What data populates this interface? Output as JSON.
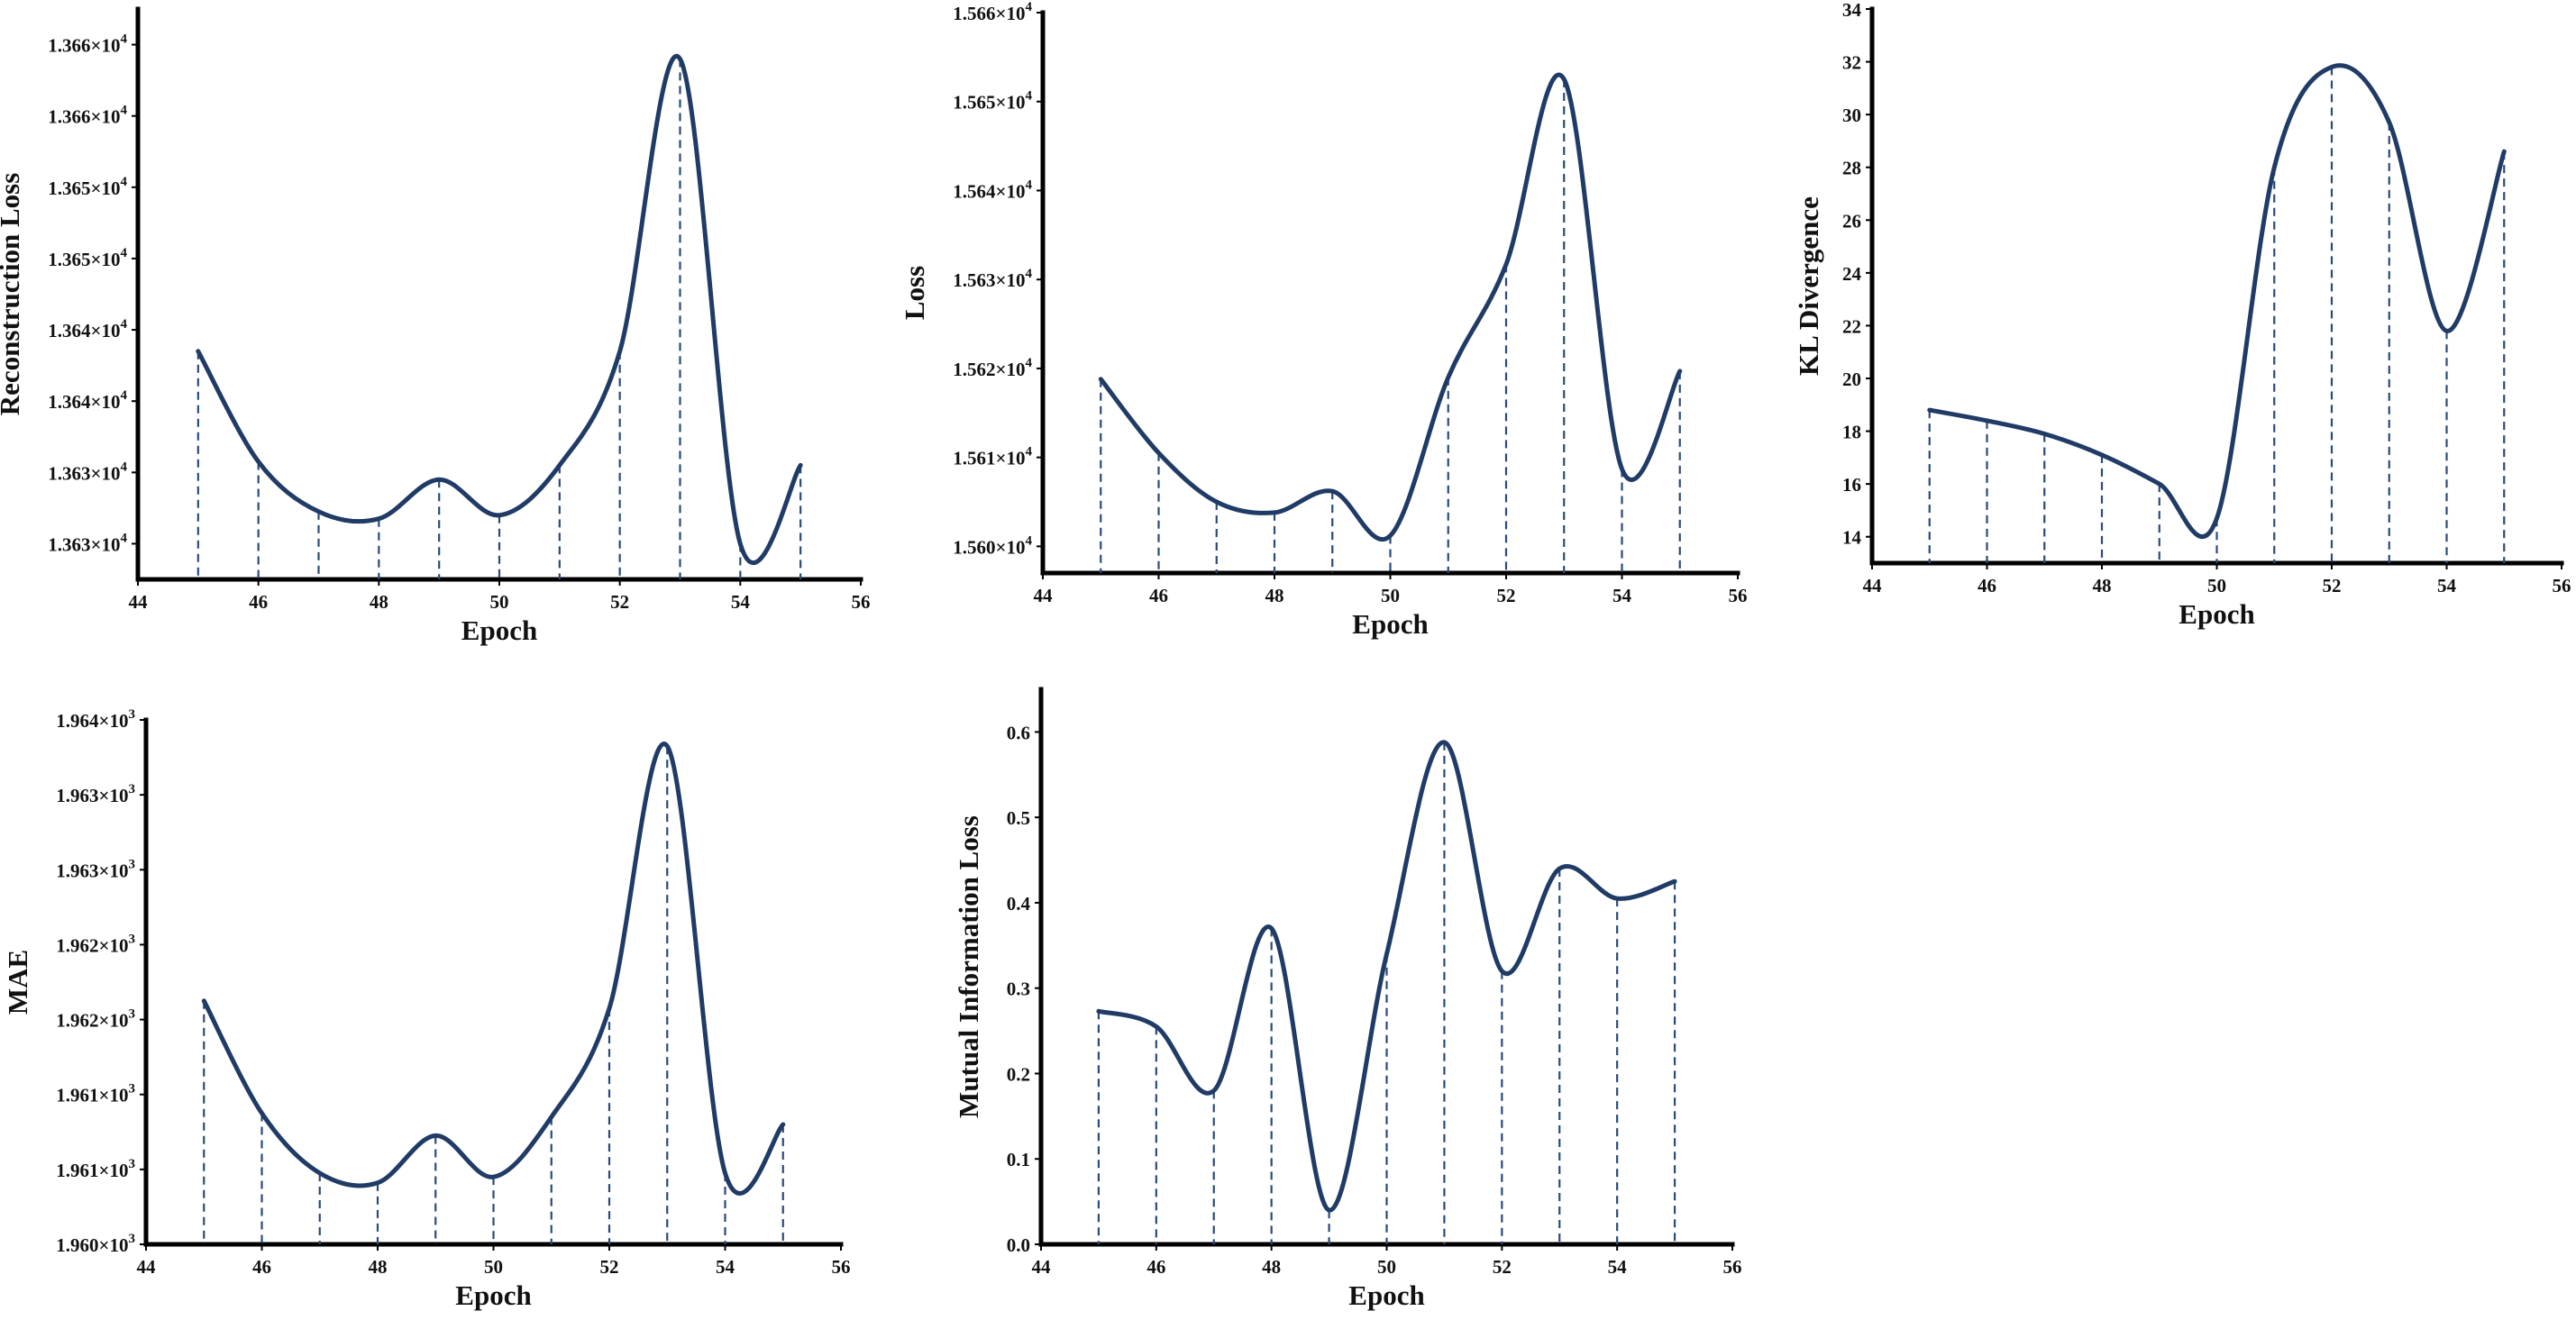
{
  "colors": {
    "line": "#1f3b66",
    "dropline": "#2b4a7a",
    "axis": "#000000"
  },
  "chart_data": [
    {
      "id": "reconstruction",
      "type": "line",
      "xlabel": "Epoch",
      "ylabel": "Reconstruction Loss",
      "xlim": [
        44,
        56
      ],
      "ylim": [
        0,
        8
      ],
      "xticks": [
        44,
        46,
        48,
        50,
        52,
        54,
        56
      ],
      "yticks": [
        {
          "v": 0.5,
          "m": "1.363×10",
          "e": "4"
        },
        {
          "v": 1.5,
          "m": "1.363×10",
          "e": "4"
        },
        {
          "v": 2.5,
          "m": "1.364×10",
          "e": "4"
        },
        {
          "v": 3.5,
          "m": "1.364×10",
          "e": "4"
        },
        {
          "v": 4.5,
          "m": "1.365×10",
          "e": "4"
        },
        {
          "v": 5.5,
          "m": "1.365×10",
          "e": "4"
        },
        {
          "v": 6.5,
          "m": "1.366×10",
          "e": "4"
        },
        {
          "v": 7.5,
          "m": "1.366×10",
          "e": "4"
        }
      ],
      "x": [
        45,
        46,
        47,
        48,
        49,
        50,
        51,
        52,
        53,
        54,
        55
      ],
      "y": [
        3.2,
        1.65,
        0.95,
        0.85,
        1.4,
        0.9,
        1.6,
        3.2,
        7.3,
        0.5,
        1.6
      ]
    },
    {
      "id": "loss",
      "type": "line",
      "xlabel": "Epoch",
      "ylabel": "Loss",
      "xlim": [
        44,
        56
      ],
      "ylim": [
        1.5597,
        1.566
      ],
      "xticks": [
        44,
        46,
        48,
        50,
        52,
        54,
        56
      ],
      "yticks": [
        {
          "v": 1.56,
          "m": "1.560×10",
          "e": "4"
        },
        {
          "v": 1.561,
          "m": "1.561×10",
          "e": "4"
        },
        {
          "v": 1.562,
          "m": "1.562×10",
          "e": "4"
        },
        {
          "v": 1.563,
          "m": "1.563×10",
          "e": "4"
        },
        {
          "v": 1.564,
          "m": "1.564×10",
          "e": "4"
        },
        {
          "v": 1.565,
          "m": "1.565×10",
          "e": "4"
        },
        {
          "v": 1.566,
          "m": "1.566×10",
          "e": "4"
        }
      ],
      "x": [
        45,
        46,
        47,
        48,
        49,
        50,
        51,
        52,
        53,
        54,
        55
      ],
      "y": [
        1.56188,
        1.56105,
        1.5605,
        1.56038,
        1.56062,
        1.56012,
        1.5619,
        1.56317,
        1.56525,
        1.56087,
        1.56197
      ]
    },
    {
      "id": "kl",
      "type": "line",
      "xlabel": "Epoch",
      "ylabel": "KL Divergence",
      "xlim": [
        44,
        56
      ],
      "ylim": [
        13,
        34
      ],
      "xticks": [
        44,
        46,
        48,
        50,
        52,
        54,
        56
      ],
      "yticks": [
        {
          "v": 14,
          "m": "14",
          "e": ""
        },
        {
          "v": 16,
          "m": "16",
          "e": ""
        },
        {
          "v": 18,
          "m": "18",
          "e": ""
        },
        {
          "v": 20,
          "m": "20",
          "e": ""
        },
        {
          "v": 22,
          "m": "22",
          "e": ""
        },
        {
          "v": 24,
          "m": "24",
          "e": ""
        },
        {
          "v": 26,
          "m": "26",
          "e": ""
        },
        {
          "v": 28,
          "m": "28",
          "e": ""
        },
        {
          "v": 30,
          "m": "30",
          "e": ""
        },
        {
          "v": 32,
          "m": "32",
          "e": ""
        },
        {
          "v": 34,
          "m": "34",
          "e": ""
        }
      ],
      "x": [
        45,
        46,
        47,
        48,
        49,
        50,
        51,
        52,
        53,
        54,
        55
      ],
      "y": [
        18.8,
        18.4,
        17.9,
        17.1,
        16.0,
        14.7,
        28.0,
        31.8,
        29.7,
        21.8,
        28.6
      ]
    },
    {
      "id": "mae",
      "type": "line",
      "xlabel": "Epoch",
      "ylabel": "MAE",
      "xlim": [
        44,
        56
      ],
      "ylim": [
        0,
        7
      ],
      "xticks": [
        44,
        46,
        48,
        50,
        52,
        54,
        56
      ],
      "yticks": [
        {
          "v": 0,
          "m": "1.960×10",
          "e": "3"
        },
        {
          "v": 1,
          "m": "1.961×10",
          "e": "3"
        },
        {
          "v": 2,
          "m": "1.961×10",
          "e": "3"
        },
        {
          "v": 3,
          "m": "1.962×10",
          "e": "3"
        },
        {
          "v": 4,
          "m": "1.962×10",
          "e": "3"
        },
        {
          "v": 5,
          "m": "1.963×10",
          "e": "3"
        },
        {
          "v": 6,
          "m": "1.963×10",
          "e": "3"
        },
        {
          "v": 7,
          "m": "1.964×10",
          "e": "3"
        }
      ],
      "x": [
        45,
        46,
        47,
        48,
        49,
        50,
        51,
        52,
        53,
        54,
        55
      ],
      "y": [
        3.25,
        1.75,
        0.95,
        0.82,
        1.45,
        0.9,
        1.7,
        3.15,
        6.65,
        0.95,
        1.6
      ]
    },
    {
      "id": "mutual",
      "type": "line",
      "xlabel": "Epoch",
      "ylabel": "Mutual Information Loss",
      "xlim": [
        44,
        56
      ],
      "ylim": [
        0,
        0.65
      ],
      "xticks": [
        44,
        46,
        48,
        50,
        52,
        54,
        56
      ],
      "yticks": [
        {
          "v": 0.0,
          "m": "0.0",
          "e": ""
        },
        {
          "v": 0.1,
          "m": "0.1",
          "e": ""
        },
        {
          "v": 0.2,
          "m": "0.2",
          "e": ""
        },
        {
          "v": 0.3,
          "m": "0.3",
          "e": ""
        },
        {
          "v": 0.4,
          "m": "0.4",
          "e": ""
        },
        {
          "v": 0.5,
          "m": "0.5",
          "e": ""
        },
        {
          "v": 0.6,
          "m": "0.6",
          "e": ""
        }
      ],
      "x": [
        45,
        46,
        47,
        48,
        49,
        50,
        51,
        52,
        53,
        54,
        55
      ],
      "y": [
        0.273,
        0.255,
        0.18,
        0.37,
        0.04,
        0.34,
        0.588,
        0.32,
        0.44,
        0.405,
        0.425
      ]
    }
  ]
}
